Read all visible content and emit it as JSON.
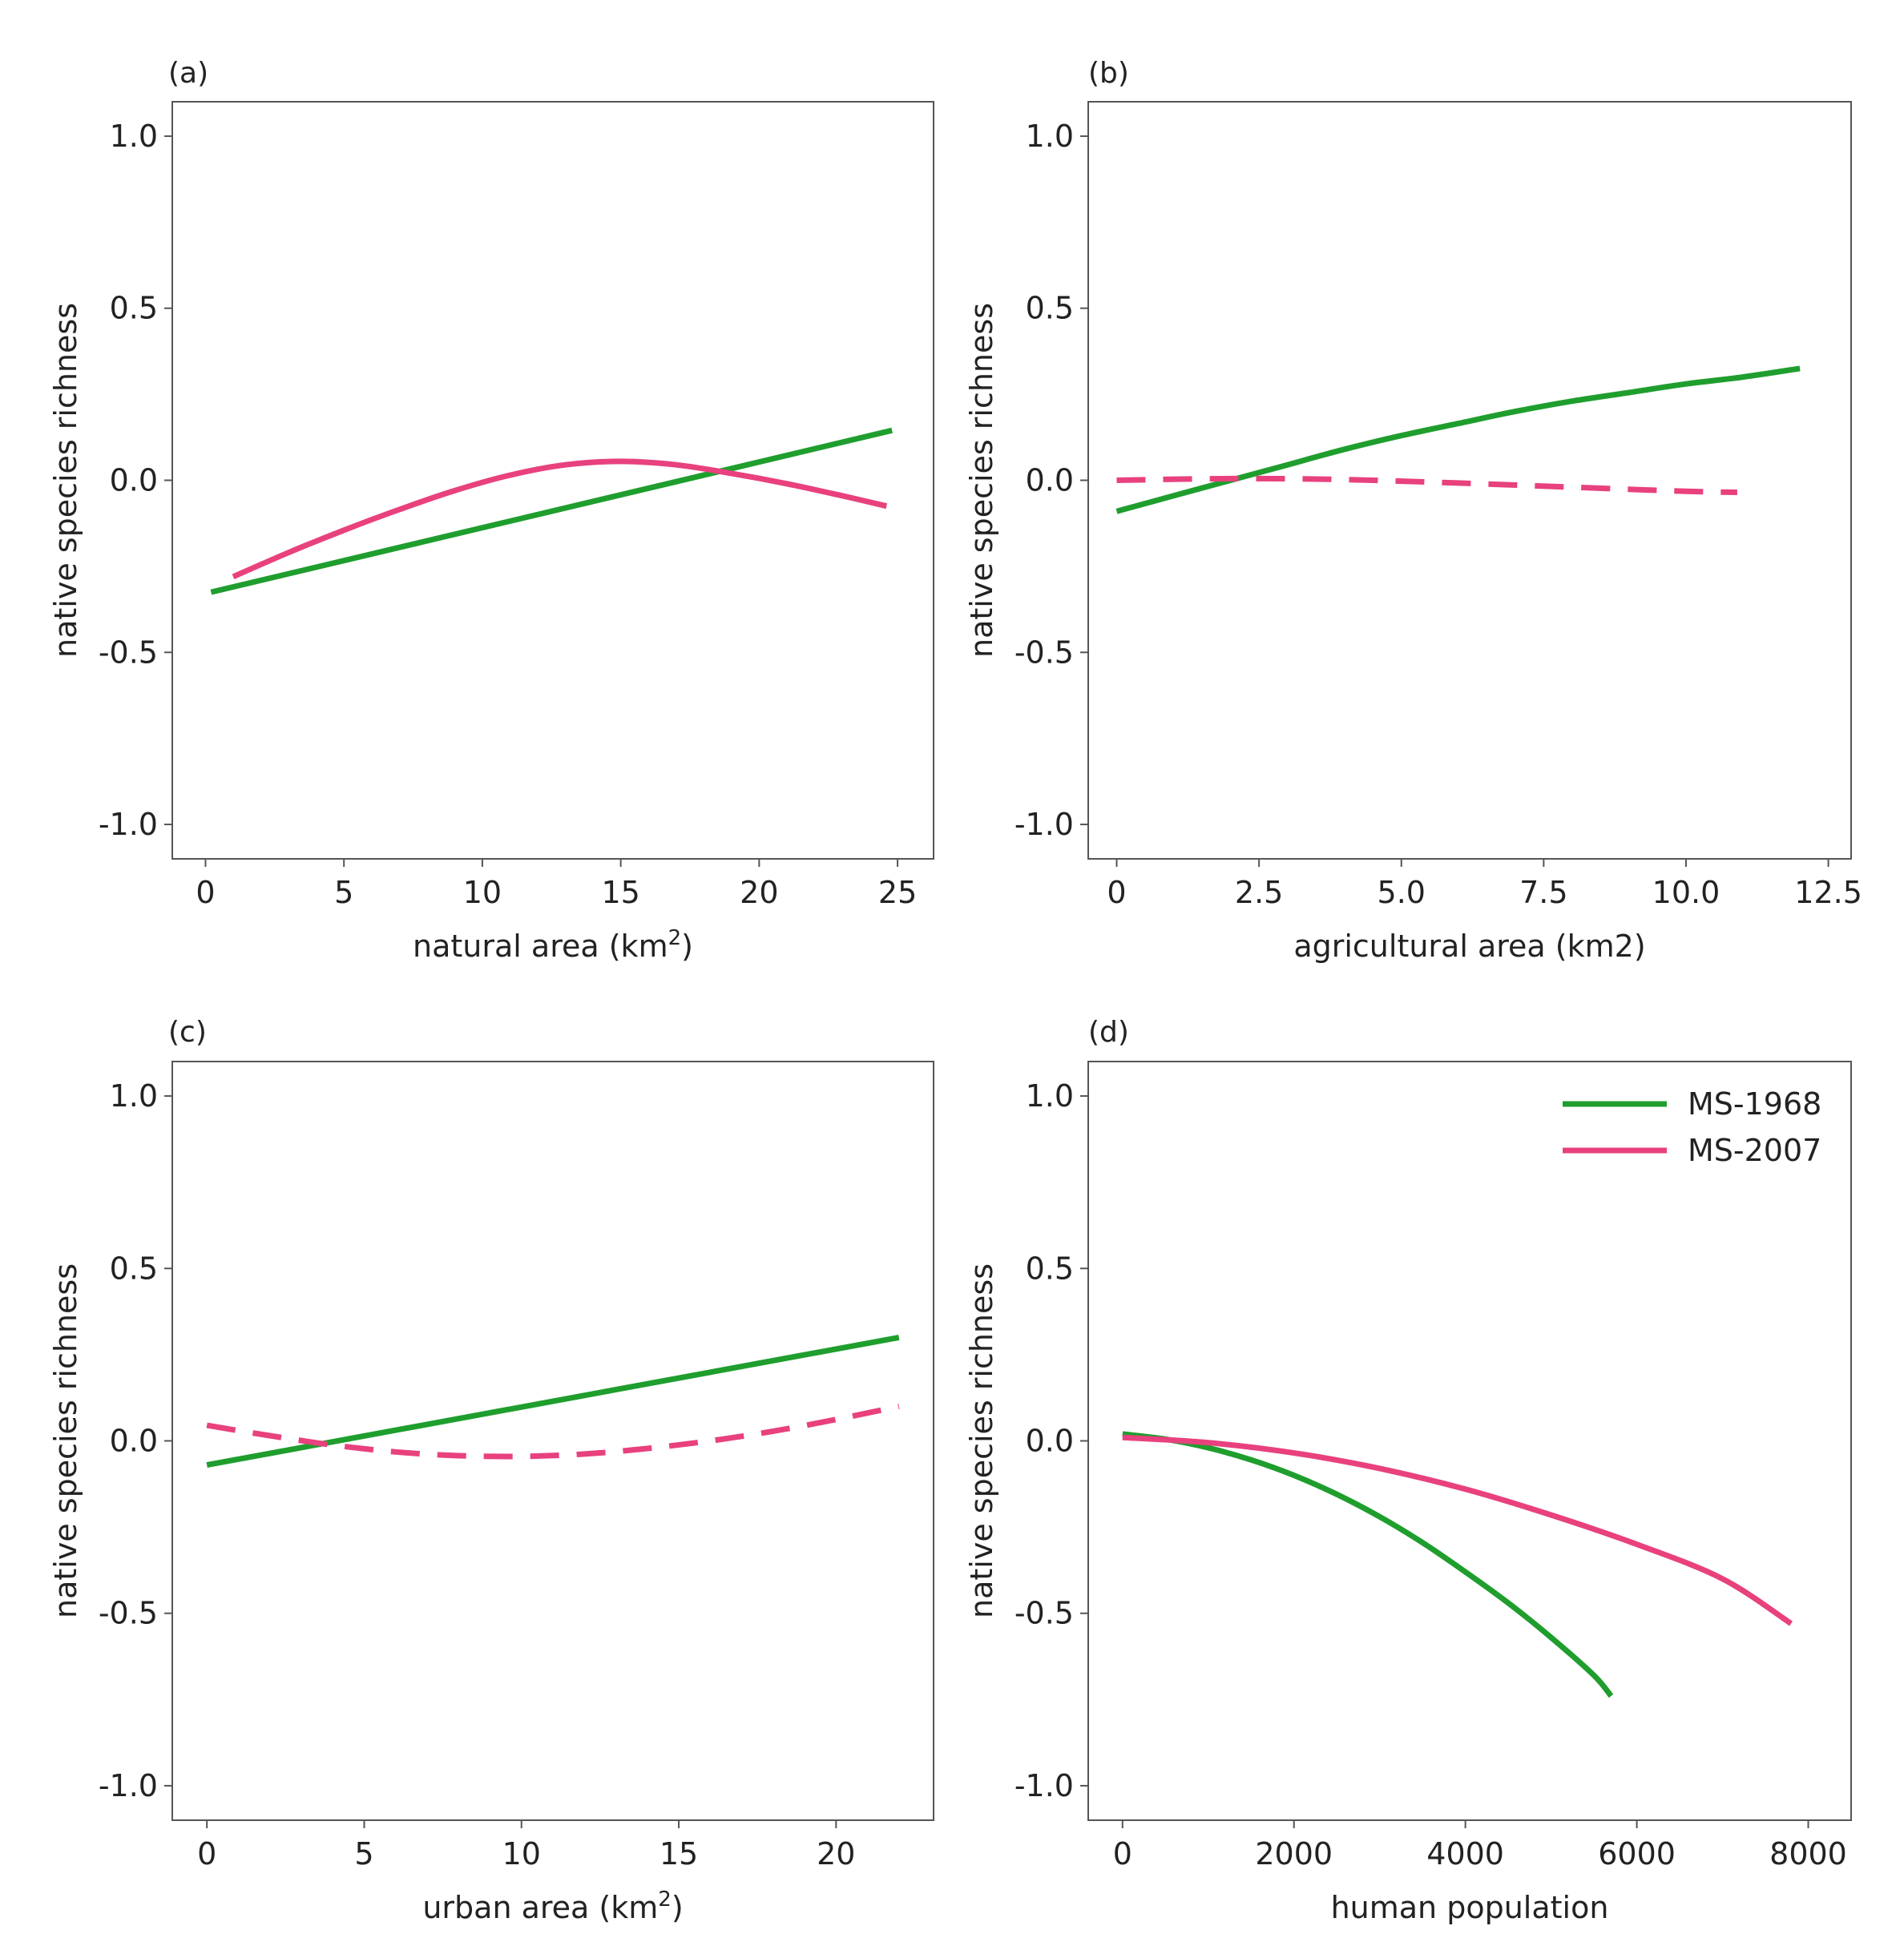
{
  "chart_data": [
    {
      "type": "line",
      "panel_label": "(a)",
      "title": "",
      "xlabel": "natural area (km",
      "xlabel_sup": "2",
      "xlabel_end": ")",
      "ylabel": "native species richness",
      "xlim": [
        -1.2,
        26.3
      ],
      "ylim": [
        -1.1,
        1.1
      ],
      "xticks": [
        0,
        5,
        10,
        15,
        20,
        25
      ],
      "xtick_labels": [
        "0",
        "5",
        "10",
        "15",
        "20",
        "25"
      ],
      "yticks": [
        1.0,
        0.5,
        0.0,
        -0.5,
        -1.0
      ],
      "ytick_labels": [
        "1.0",
        "0.5",
        "0.0",
        "-0.5",
        "-1.0"
      ],
      "grid": false,
      "series": [
        {
          "name": "MS-1968",
          "color": "#1f9e2e",
          "dashed": false,
          "x": [
            0.2,
            24.8
          ],
          "y": [
            -0.325,
            0.145
          ]
        },
        {
          "name": "MS-2007",
          "color": "#e8417e",
          "dashed": false,
          "x": [
            1.0,
            3.0,
            5.0,
            7.0,
            9.0,
            11.0,
            13.0,
            15.0,
            17.0,
            19.0,
            21.0,
            23.0,
            24.6
          ],
          "y": [
            -0.28,
            -0.21,
            -0.145,
            -0.085,
            -0.03,
            0.015,
            0.045,
            0.055,
            0.045,
            0.02,
            -0.01,
            -0.045,
            -0.075
          ]
        }
      ]
    },
    {
      "type": "line",
      "panel_label": "(b)",
      "title": "",
      "xlabel": "agricultural area (km2)",
      "xlabel_sup": "",
      "xlabel_end": "",
      "ylabel": "native species richness",
      "xlim": [
        -0.5,
        12.9
      ],
      "ylim": [
        -1.1,
        1.1
      ],
      "xticks": [
        0,
        2.5,
        5.0,
        7.5,
        10.0,
        12.5
      ],
      "xtick_labels": [
        "0",
        "2.5",
        "5.0",
        "7.5",
        "10.0",
        "12.5"
      ],
      "yticks": [
        1.0,
        0.5,
        0.0,
        -0.5,
        -1.0
      ],
      "ytick_labels": [
        "1.0",
        "0.5",
        "0.0",
        "-0.5",
        "-1.0"
      ],
      "grid": false,
      "series": [
        {
          "name": "MS-1968",
          "color": "#1f9e2e",
          "dashed": false,
          "x": [
            0.0,
            1.0,
            2.0,
            3.0,
            4.0,
            5.0,
            6.0,
            7.0,
            8.0,
            9.0,
            10.0,
            11.0,
            12.0
          ],
          "y": [
            -0.09,
            -0.045,
            0.0,
            0.045,
            0.09,
            0.13,
            0.165,
            0.2,
            0.23,
            0.255,
            0.28,
            0.3,
            0.325
          ]
        },
        {
          "name": "MS-2007",
          "color": "#e8417e",
          "dashed": true,
          "x": [
            0.0,
            2.0,
            4.0,
            6.0,
            8.0,
            10.0,
            10.9
          ],
          "y": [
            0.0,
            0.005,
            0.002,
            -0.008,
            -0.02,
            -0.032,
            -0.035
          ]
        }
      ]
    },
    {
      "type": "line",
      "panel_label": "(c)",
      "title": "",
      "xlabel": "urban area (km",
      "xlabel_sup": "2",
      "xlabel_end": ")",
      "ylabel": "native species richness",
      "xlim": [
        -1.1,
        23.1
      ],
      "ylim": [
        -1.1,
        1.1
      ],
      "xticks": [
        0,
        5,
        10,
        15,
        20
      ],
      "xtick_labels": [
        "0",
        "5",
        "10",
        "15",
        "20"
      ],
      "yticks": [
        1.0,
        0.5,
        0.0,
        -0.5,
        -1.0
      ],
      "ytick_labels": [
        "1.0",
        "0.5",
        "0.0",
        "-0.5",
        "-1.0"
      ],
      "grid": false,
      "series": [
        {
          "name": "MS-1968",
          "color": "#1f9e2e",
          "dashed": false,
          "x": [
            0.0,
            22.0
          ],
          "y": [
            -0.07,
            0.3
          ]
        },
        {
          "name": "MS-2007",
          "color": "#e8417e",
          "dashed": true,
          "x": [
            0.0,
            2.0,
            4.0,
            6.0,
            8.0,
            10.0,
            12.0,
            14.0,
            16.0,
            18.0,
            20.0,
            22.0
          ],
          "y": [
            0.045,
            0.015,
            -0.012,
            -0.032,
            -0.043,
            -0.045,
            -0.038,
            -0.022,
            0.0,
            0.028,
            0.062,
            0.1
          ]
        }
      ]
    },
    {
      "type": "line",
      "panel_label": "(d)",
      "title": "",
      "xlabel": "human population",
      "xlabel_sup": "",
      "xlabel_end": "",
      "ylabel": "native species richness",
      "xlim": [
        -400,
        8500
      ],
      "ylim": [
        -1.1,
        1.1
      ],
      "xticks": [
        0,
        2000,
        4000,
        6000,
        8000
      ],
      "xtick_labels": [
        "0",
        "2000",
        "4000",
        "6000",
        "8000"
      ],
      "yticks": [
        1.0,
        0.5,
        0.0,
        -0.5,
        -1.0
      ],
      "ytick_labels": [
        "1.0",
        "0.5",
        "0.0",
        "-0.5",
        "-1.0"
      ],
      "grid": false,
      "legend": {
        "placement": "top-right",
        "entries": [
          "MS-1968",
          "MS-2007"
        ]
      },
      "series": [
        {
          "name": "MS-1968",
          "color": "#1f9e2e",
          "dashed": false,
          "x": [
            0,
            500,
            1000,
            1500,
            2000,
            2500,
            3000,
            3500,
            4000,
            4500,
            5000,
            5500,
            5700
          ],
          "y": [
            0.02,
            0.005,
            -0.02,
            -0.055,
            -0.1,
            -0.155,
            -0.22,
            -0.295,
            -0.38,
            -0.47,
            -0.57,
            -0.68,
            -0.74
          ]
        },
        {
          "name": "MS-2007",
          "color": "#e8417e",
          "dashed": false,
          "x": [
            0,
            1000,
            2000,
            3000,
            4000,
            5000,
            6000,
            7000,
            7800
          ],
          "y": [
            0.01,
            -0.005,
            -0.035,
            -0.08,
            -0.14,
            -0.215,
            -0.3,
            -0.4,
            -0.53
          ]
        }
      ]
    }
  ]
}
